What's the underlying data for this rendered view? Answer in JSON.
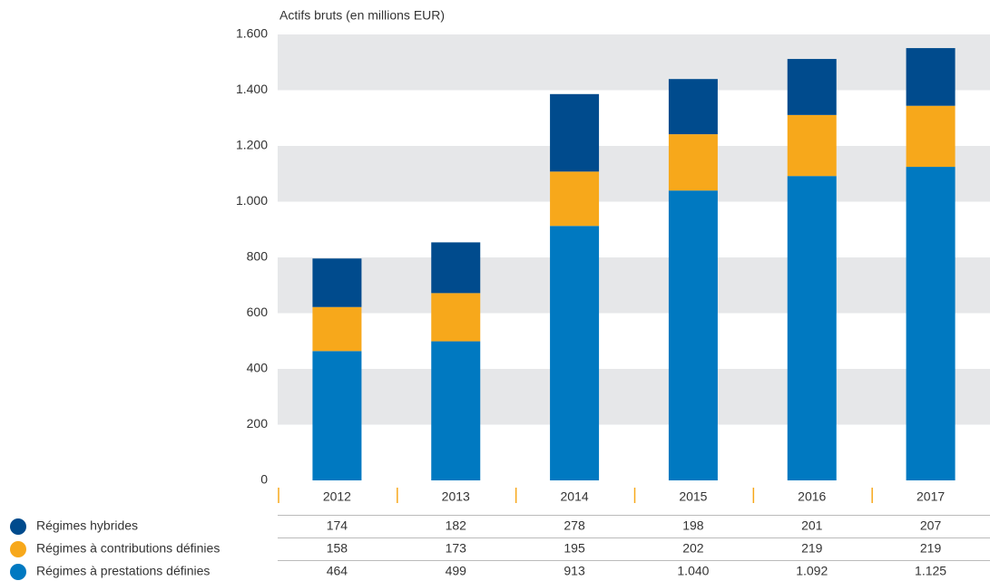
{
  "chart_data": {
    "type": "stacked_bar",
    "y_axis_label": "Actifs bruts (en millions EUR)",
    "categories": [
      "2012",
      "2013",
      "2014",
      "2015",
      "2016",
      "2017"
    ],
    "series": [
      {
        "name": "Régimes hybrides",
        "color": "#004b8d",
        "values": [
          174,
          182,
          278,
          198,
          201,
          207
        ]
      },
      {
        "name": "Régimes à contributions définies",
        "color": "#f7a81b",
        "values": [
          158,
          173,
          195,
          202,
          219,
          219
        ]
      },
      {
        "name": "Régimes à prestations définies",
        "color": "#0079c1",
        "values": [
          464,
          499,
          913,
          1040,
          1092,
          1125
        ],
        "value_labels": [
          "464",
          "499",
          "913",
          "1.040",
          "1.092",
          "1.125"
        ]
      }
    ],
    "ylim": [
      0,
      1600
    ],
    "yticks": [
      0,
      200,
      400,
      600,
      800,
      {
        "value": 1000,
        "label": "1.000"
      },
      {
        "value": 1200,
        "label": "1.200"
      },
      {
        "value": 1400,
        "label": "1.400"
      },
      {
        "value": 1600,
        "label": "1.600"
      }
    ],
    "band_color": "#e6e7e9"
  }
}
